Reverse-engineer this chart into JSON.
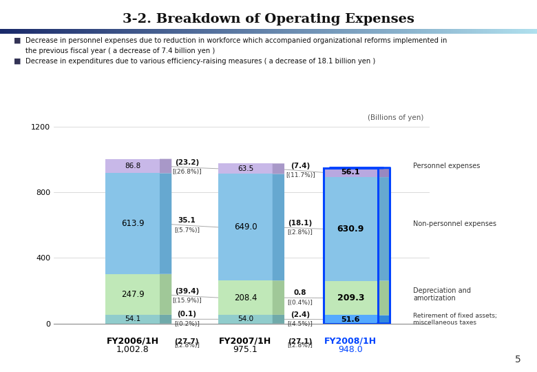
{
  "title": "3-2. Breakdown of Operating Expenses",
  "title_fontsize": 14,
  "background_color": "#ffffff",
  "bullet_text_1a": "Decrease in personnel expenses due to reduction in workforce which accompanied organizational reforms implemented in",
  "bullet_text_1b": "the previous fiscal year ( a decrease of 7.4 billion yen )",
  "bullet_text_2": "Decrease in expenditures due to various efficiency-raising measures ( a decrease of 18.1 billion yen )",
  "subtitle_units": "(Billions of yen)",
  "ylim": [
    0,
    1200
  ],
  "yticks": [
    0,
    400,
    800,
    1200
  ],
  "page_number": "5",
  "bars": {
    "FY2006/1H": {
      "retirement": 54.1,
      "depreciation": 247.9,
      "non_personnel": 613.9,
      "personnel": 86.8,
      "total": 1002.8,
      "highlighted": false
    },
    "FY2007/1H": {
      "retirement": 54.0,
      "depreciation": 208.4,
      "non_personnel": 649.0,
      "personnel": 63.5,
      "total": 975.1,
      "highlighted": false
    },
    "FY2008/1H": {
      "retirement": 51.6,
      "depreciation": 209.3,
      "non_personnel": 630.9,
      "personnel": 56.1,
      "total": 948.0,
      "highlighted": true
    }
  },
  "changes_fy0607": {
    "personnel": {
      "val": "(23.2)",
      "pct": "[(26.8%)]"
    },
    "non_personnel": {
      "val": "35.1",
      "pct": "[(5.7%)]"
    },
    "depreciation": {
      "val": "(39.4)",
      "pct": "[(15.9%)]"
    },
    "retirement": {
      "val": "(0.1)",
      "pct": "[(0.2%)]"
    },
    "total": {
      "val": "(27.7)",
      "pct": "[(2.8%)]"
    }
  },
  "changes_fy0708": {
    "personnel": {
      "val": "(7.4)",
      "pct": "[(11.7%)]"
    },
    "non_personnel": {
      "val": "(18.1)",
      "pct": "[(2.8%)]"
    },
    "depreciation": {
      "val": "0.8",
      "pct": "[(0.4%)]"
    },
    "retirement": {
      "val": "(2.4)",
      "pct": "[(4.5%)]"
    },
    "total": {
      "val": "(27.1)",
      "pct": "[(2.8%)]"
    }
  },
  "colors": {
    "highlight_border": "#0044ff"
  },
  "legend_labels": {
    "personnel": "Personnel expenses",
    "non_personnel": "Non-personnel expenses",
    "depreciation": "Depreciation and\namortization",
    "retirement": "Retirement of fixed assets;\nmiscellaneous taxes"
  }
}
